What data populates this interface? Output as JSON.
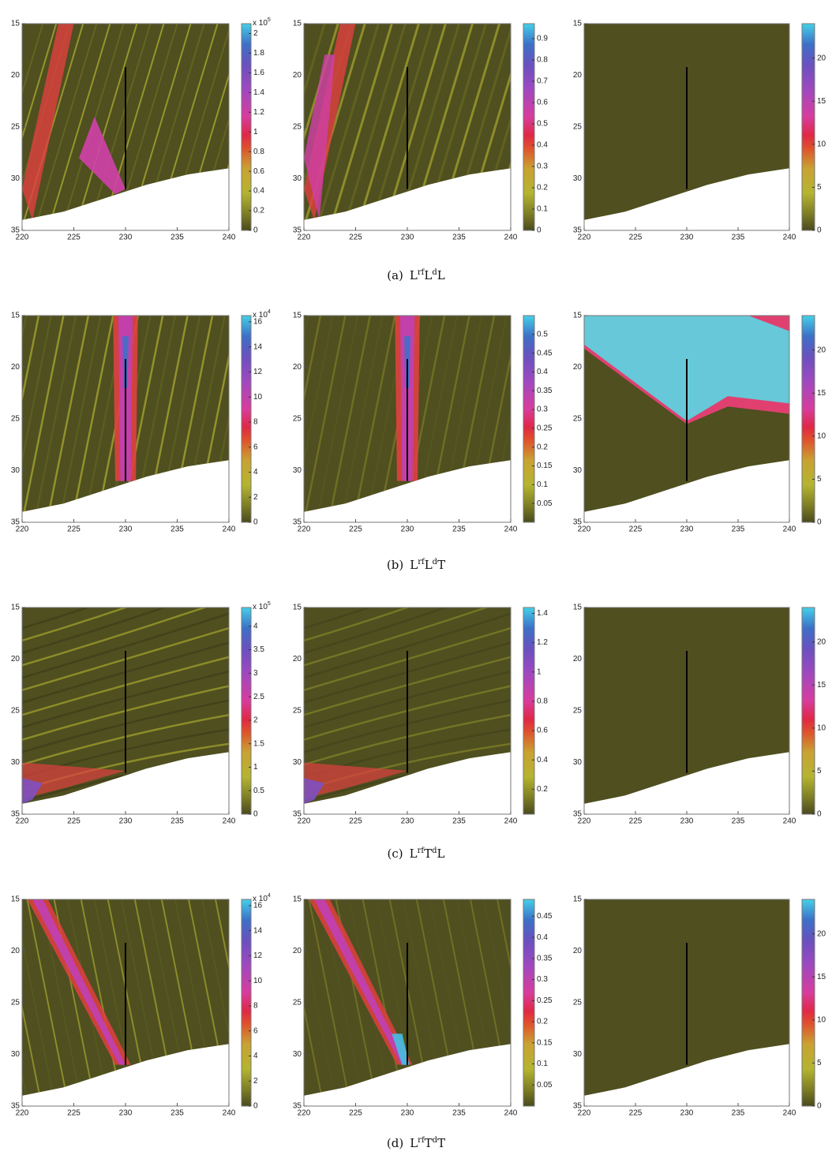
{
  "axes": {
    "xlim": [
      220,
      240
    ],
    "ylim": [
      15,
      35
    ],
    "xticks": [
      220,
      225,
      230,
      235,
      240
    ],
    "yticks": [
      15,
      20,
      25,
      30,
      35
    ]
  },
  "rows": [
    {
      "caption": {
        "label": "(a)",
        "terms": [
          {
            "base": "L",
            "sup": "rf"
          },
          {
            "base": "L",
            "sup": "d"
          },
          {
            "base": "L"
          }
        ]
      },
      "panels": [
        {
          "colorbar": {
            "clim": [
              0,
              2.1
            ],
            "ticks": [
              0,
              0.2,
              0.4,
              0.6,
              0.8,
              1,
              1.2,
              1.4,
              1.6,
              1.8,
              2
            ],
            "multiplier": {
              "base": "x 10",
              "exp": "5"
            }
          }
        },
        {
          "colorbar": {
            "clim": [
              0,
              0.97
            ],
            "ticks": [
              0,
              0.1,
              0.2,
              0.3,
              0.4,
              0.5,
              0.6,
              0.7,
              0.8,
              0.9
            ]
          }
        },
        {
          "colorbar": {
            "clim": [
              0,
              24
            ],
            "ticks": [
              0,
              5,
              10,
              15,
              20
            ]
          }
        }
      ]
    },
    {
      "caption": {
        "label": "(b)",
        "terms": [
          {
            "base": "L",
            "sup": "rf"
          },
          {
            "base": "L",
            "sup": "d"
          },
          {
            "base": "T"
          }
        ]
      },
      "panels": [
        {
          "colorbar": {
            "clim": [
              0,
              16.5
            ],
            "ticks": [
              0,
              2,
              4,
              6,
              8,
              10,
              12,
              14,
              16
            ],
            "multiplier": {
              "base": "x 10",
              "exp": "4"
            }
          }
        },
        {
          "colorbar": {
            "clim": [
              0,
              0.55
            ],
            "ticks": [
              0.05,
              0.1,
              0.15,
              0.2,
              0.25,
              0.3,
              0.35,
              0.4,
              0.45,
              0.5
            ]
          }
        },
        {
          "colorbar": {
            "clim": [
              0,
              24
            ],
            "ticks": [
              0,
              5,
              10,
              15,
              20
            ]
          }
        }
      ]
    },
    {
      "caption": {
        "label": "(c)",
        "terms": [
          {
            "base": "L",
            "sup": "rf"
          },
          {
            "base": "T",
            "sup": "d"
          },
          {
            "base": "L"
          }
        ]
      },
      "panels": [
        {
          "colorbar": {
            "clim": [
              0,
              4.4
            ],
            "ticks": [
              0,
              0.5,
              1,
              1.5,
              2,
              2.5,
              3,
              3.5,
              4
            ],
            "multiplier": {
              "base": "x 10",
              "exp": "5"
            }
          }
        },
        {
          "colorbar": {
            "clim": [
              0.03,
              1.44
            ],
            "ticks": [
              0.2,
              0.4,
              0.6,
              0.8,
              1,
              1.2,
              1.4
            ]
          }
        },
        {
          "colorbar": {
            "clim": [
              0,
              24
            ],
            "ticks": [
              0,
              5,
              10,
              15,
              20
            ]
          }
        }
      ]
    },
    {
      "caption": {
        "label": "(d)",
        "terms": [
          {
            "base": "L",
            "sup": "rf"
          },
          {
            "base": "T",
            "sup": "d"
          },
          {
            "base": "T"
          }
        ]
      },
      "panels": [
        {
          "colorbar": {
            "clim": [
              0,
              16.5
            ],
            "ticks": [
              0,
              2,
              4,
              6,
              8,
              10,
              12,
              14,
              16
            ],
            "multiplier": {
              "base": "x 10",
              "exp": "4"
            }
          }
        },
        {
          "colorbar": {
            "clim": [
              0,
              0.49
            ],
            "ticks": [
              0.05,
              0.1,
              0.15,
              0.2,
              0.25,
              0.3,
              0.35,
              0.4,
              0.45
            ]
          }
        },
        {
          "colorbar": {
            "clim": [
              0,
              24
            ],
            "ticks": [
              0,
              5,
              10,
              15,
              20
            ]
          }
        }
      ]
    }
  ]
}
